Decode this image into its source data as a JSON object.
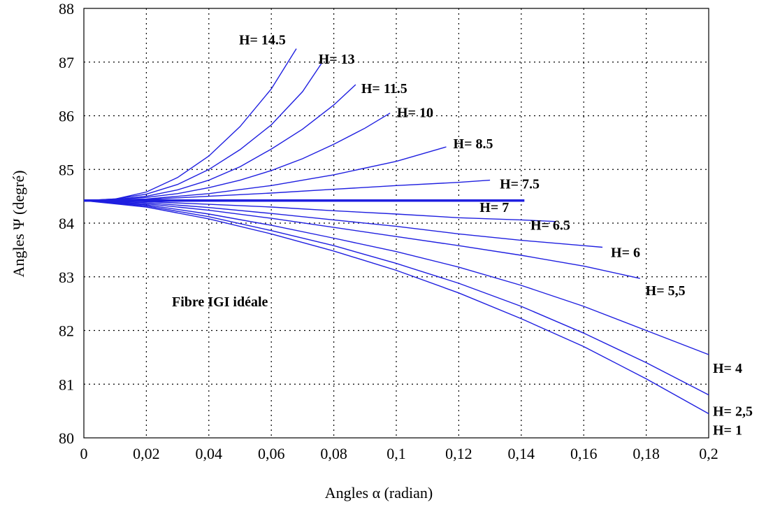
{
  "chart_data": {
    "type": "line",
    "title": "",
    "xlabel": "Angles α (radian)",
    "ylabel": "Angles Ψ (degré)",
    "xlim": [
      0,
      0.2
    ],
    "ylim": [
      80,
      88
    ],
    "x_ticks": [
      "0",
      "0,02",
      "0,04",
      "0,06",
      "0,08",
      "0,1",
      "0,12",
      "0,14",
      "0,16",
      "0,18",
      "0,2"
    ],
    "y_ticks": [
      "80",
      "81",
      "82",
      "83",
      "84",
      "85",
      "86",
      "87",
      "88"
    ],
    "grid": true,
    "line_color": "#1f1fe0",
    "annotation": "Fibre IGI idéale",
    "series": [
      {
        "name": "H= 14.5",
        "x": [
          0,
          0.01,
          0.02,
          0.03,
          0.04,
          0.05,
          0.06,
          0.068
        ],
        "y": [
          84.42,
          84.45,
          84.58,
          84.85,
          85.25,
          85.8,
          86.5,
          87.25
        ]
      },
      {
        "name": "H= 13",
        "x": [
          0,
          0.01,
          0.02,
          0.03,
          0.04,
          0.05,
          0.06,
          0.07,
          0.076
        ],
        "y": [
          84.42,
          84.45,
          84.54,
          84.72,
          85.0,
          85.37,
          85.83,
          86.45,
          86.97
        ]
      },
      {
        "name": "H= 11.5",
        "x": [
          0,
          0.01,
          0.02,
          0.03,
          0.04,
          0.05,
          0.06,
          0.07,
          0.08,
          0.087
        ],
        "y": [
          84.42,
          84.44,
          84.5,
          84.62,
          84.8,
          85.05,
          85.38,
          85.75,
          86.2,
          86.58
        ]
      },
      {
        "name": "H= 10",
        "x": [
          0,
          0.01,
          0.02,
          0.03,
          0.04,
          0.05,
          0.06,
          0.07,
          0.08,
          0.09,
          0.098
        ],
        "y": [
          84.42,
          84.44,
          84.48,
          84.55,
          84.66,
          84.8,
          84.98,
          85.2,
          85.47,
          85.77,
          86.05
        ]
      },
      {
        "name": "H= 8.5",
        "x": [
          0,
          0.02,
          0.04,
          0.06,
          0.08,
          0.1,
          0.116
        ],
        "y": [
          84.42,
          84.45,
          84.55,
          84.7,
          84.9,
          85.15,
          85.42
        ]
      },
      {
        "name": "H= 7.5",
        "x": [
          0,
          0.02,
          0.04,
          0.06,
          0.08,
          0.1,
          0.12,
          0.13
        ],
        "y": [
          84.42,
          84.44,
          84.5,
          84.56,
          84.63,
          84.7,
          84.76,
          84.8
        ]
      },
      {
        "name": "H= 7",
        "x": [
          0,
          0.141
        ],
        "y": [
          84.42,
          84.42
        ]
      },
      {
        "name": "H= 6.5",
        "x": [
          0,
          0.02,
          0.04,
          0.06,
          0.08,
          0.1,
          0.12,
          0.14,
          0.151
        ],
        "y": [
          84.42,
          84.4,
          84.35,
          84.3,
          84.23,
          84.17,
          84.1,
          84.06,
          84.03
        ]
      },
      {
        "name": "H= 6",
        "x": [
          0,
          0.02,
          0.04,
          0.06,
          0.08,
          0.1,
          0.12,
          0.14,
          0.16,
          0.166
        ],
        "y": [
          84.42,
          84.38,
          84.29,
          84.18,
          84.06,
          83.94,
          83.8,
          83.68,
          83.58,
          83.55
        ]
      },
      {
        "name": "H= 5,5",
        "x": [
          0,
          0.02,
          0.04,
          0.06,
          0.08,
          0.1,
          0.12,
          0.14,
          0.16,
          0.178
        ],
        "y": [
          84.42,
          84.36,
          84.24,
          84.09,
          83.92,
          83.75,
          83.58,
          83.4,
          83.2,
          82.97
        ]
      },
      {
        "name": "H= 4",
        "x": [
          0,
          0.02,
          0.04,
          0.06,
          0.08,
          0.1,
          0.12,
          0.14,
          0.16,
          0.18,
          0.2
        ],
        "y": [
          84.42,
          84.34,
          84.17,
          83.96,
          83.72,
          83.47,
          83.18,
          82.84,
          82.45,
          82.0,
          81.55
        ]
      },
      {
        "name": "H= 2,5",
        "x": [
          0,
          0.02,
          0.04,
          0.06,
          0.08,
          0.1,
          0.12,
          0.14,
          0.16,
          0.18,
          0.2
        ],
        "y": [
          84.42,
          84.32,
          84.12,
          83.86,
          83.58,
          83.25,
          82.88,
          82.45,
          81.95,
          81.4,
          80.8
        ]
      },
      {
        "name": "H= 1",
        "x": [
          0,
          0.02,
          0.04,
          0.06,
          0.08,
          0.1,
          0.12,
          0.14,
          0.16,
          0.18,
          0.2
        ],
        "y": [
          84.42,
          84.3,
          84.08,
          83.8,
          83.48,
          83.12,
          82.7,
          82.22,
          81.7,
          81.1,
          80.45
        ]
      }
    ]
  }
}
